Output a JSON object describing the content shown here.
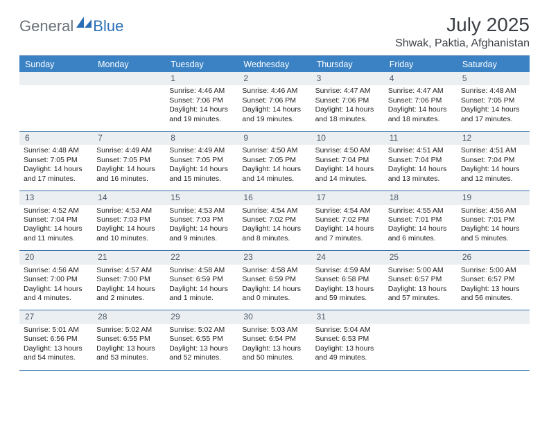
{
  "brand": {
    "general": "General",
    "blue": "Blue"
  },
  "title": "July 2025",
  "location": "Shwak, Paktia, Afghanistan",
  "accent_color": "#3a82c4",
  "rule_color": "#2f6aa6",
  "date_bar_color": "#eceff2",
  "day_names": [
    "Sunday",
    "Monday",
    "Tuesday",
    "Wednesday",
    "Thursday",
    "Friday",
    "Saturday"
  ],
  "weeks": [
    [
      null,
      null,
      {
        "d": "1",
        "sr": "Sunrise: 4:46 AM",
        "ss": "Sunset: 7:06 PM",
        "dl1": "Daylight: 14 hours",
        "dl2": "and 19 minutes."
      },
      {
        "d": "2",
        "sr": "Sunrise: 4:46 AM",
        "ss": "Sunset: 7:06 PM",
        "dl1": "Daylight: 14 hours",
        "dl2": "and 19 minutes."
      },
      {
        "d": "3",
        "sr": "Sunrise: 4:47 AM",
        "ss": "Sunset: 7:06 PM",
        "dl1": "Daylight: 14 hours",
        "dl2": "and 18 minutes."
      },
      {
        "d": "4",
        "sr": "Sunrise: 4:47 AM",
        "ss": "Sunset: 7:06 PM",
        "dl1": "Daylight: 14 hours",
        "dl2": "and 18 minutes."
      },
      {
        "d": "5",
        "sr": "Sunrise: 4:48 AM",
        "ss": "Sunset: 7:05 PM",
        "dl1": "Daylight: 14 hours",
        "dl2": "and 17 minutes."
      }
    ],
    [
      {
        "d": "6",
        "sr": "Sunrise: 4:48 AM",
        "ss": "Sunset: 7:05 PM",
        "dl1": "Daylight: 14 hours",
        "dl2": "and 17 minutes."
      },
      {
        "d": "7",
        "sr": "Sunrise: 4:49 AM",
        "ss": "Sunset: 7:05 PM",
        "dl1": "Daylight: 14 hours",
        "dl2": "and 16 minutes."
      },
      {
        "d": "8",
        "sr": "Sunrise: 4:49 AM",
        "ss": "Sunset: 7:05 PM",
        "dl1": "Daylight: 14 hours",
        "dl2": "and 15 minutes."
      },
      {
        "d": "9",
        "sr": "Sunrise: 4:50 AM",
        "ss": "Sunset: 7:05 PM",
        "dl1": "Daylight: 14 hours",
        "dl2": "and 14 minutes."
      },
      {
        "d": "10",
        "sr": "Sunrise: 4:50 AM",
        "ss": "Sunset: 7:04 PM",
        "dl1": "Daylight: 14 hours",
        "dl2": "and 14 minutes."
      },
      {
        "d": "11",
        "sr": "Sunrise: 4:51 AM",
        "ss": "Sunset: 7:04 PM",
        "dl1": "Daylight: 14 hours",
        "dl2": "and 13 minutes."
      },
      {
        "d": "12",
        "sr": "Sunrise: 4:51 AM",
        "ss": "Sunset: 7:04 PM",
        "dl1": "Daylight: 14 hours",
        "dl2": "and 12 minutes."
      }
    ],
    [
      {
        "d": "13",
        "sr": "Sunrise: 4:52 AM",
        "ss": "Sunset: 7:04 PM",
        "dl1": "Daylight: 14 hours",
        "dl2": "and 11 minutes."
      },
      {
        "d": "14",
        "sr": "Sunrise: 4:53 AM",
        "ss": "Sunset: 7:03 PM",
        "dl1": "Daylight: 14 hours",
        "dl2": "and 10 minutes."
      },
      {
        "d": "15",
        "sr": "Sunrise: 4:53 AM",
        "ss": "Sunset: 7:03 PM",
        "dl1": "Daylight: 14 hours",
        "dl2": "and 9 minutes."
      },
      {
        "d": "16",
        "sr": "Sunrise: 4:54 AM",
        "ss": "Sunset: 7:02 PM",
        "dl1": "Daylight: 14 hours",
        "dl2": "and 8 minutes."
      },
      {
        "d": "17",
        "sr": "Sunrise: 4:54 AM",
        "ss": "Sunset: 7:02 PM",
        "dl1": "Daylight: 14 hours",
        "dl2": "and 7 minutes."
      },
      {
        "d": "18",
        "sr": "Sunrise: 4:55 AM",
        "ss": "Sunset: 7:01 PM",
        "dl1": "Daylight: 14 hours",
        "dl2": "and 6 minutes."
      },
      {
        "d": "19",
        "sr": "Sunrise: 4:56 AM",
        "ss": "Sunset: 7:01 PM",
        "dl1": "Daylight: 14 hours",
        "dl2": "and 5 minutes."
      }
    ],
    [
      {
        "d": "20",
        "sr": "Sunrise: 4:56 AM",
        "ss": "Sunset: 7:00 PM",
        "dl1": "Daylight: 14 hours",
        "dl2": "and 4 minutes."
      },
      {
        "d": "21",
        "sr": "Sunrise: 4:57 AM",
        "ss": "Sunset: 7:00 PM",
        "dl1": "Daylight: 14 hours",
        "dl2": "and 2 minutes."
      },
      {
        "d": "22",
        "sr": "Sunrise: 4:58 AM",
        "ss": "Sunset: 6:59 PM",
        "dl1": "Daylight: 14 hours",
        "dl2": "and 1 minute."
      },
      {
        "d": "23",
        "sr": "Sunrise: 4:58 AM",
        "ss": "Sunset: 6:59 PM",
        "dl1": "Daylight: 14 hours",
        "dl2": "and 0 minutes."
      },
      {
        "d": "24",
        "sr": "Sunrise: 4:59 AM",
        "ss": "Sunset: 6:58 PM",
        "dl1": "Daylight: 13 hours",
        "dl2": "and 59 minutes."
      },
      {
        "d": "25",
        "sr": "Sunrise: 5:00 AM",
        "ss": "Sunset: 6:57 PM",
        "dl1": "Daylight: 13 hours",
        "dl2": "and 57 minutes."
      },
      {
        "d": "26",
        "sr": "Sunrise: 5:00 AM",
        "ss": "Sunset: 6:57 PM",
        "dl1": "Daylight: 13 hours",
        "dl2": "and 56 minutes."
      }
    ],
    [
      {
        "d": "27",
        "sr": "Sunrise: 5:01 AM",
        "ss": "Sunset: 6:56 PM",
        "dl1": "Daylight: 13 hours",
        "dl2": "and 54 minutes."
      },
      {
        "d": "28",
        "sr": "Sunrise: 5:02 AM",
        "ss": "Sunset: 6:55 PM",
        "dl1": "Daylight: 13 hours",
        "dl2": "and 53 minutes."
      },
      {
        "d": "29",
        "sr": "Sunrise: 5:02 AM",
        "ss": "Sunset: 6:55 PM",
        "dl1": "Daylight: 13 hours",
        "dl2": "and 52 minutes."
      },
      {
        "d": "30",
        "sr": "Sunrise: 5:03 AM",
        "ss": "Sunset: 6:54 PM",
        "dl1": "Daylight: 13 hours",
        "dl2": "and 50 minutes."
      },
      {
        "d": "31",
        "sr": "Sunrise: 5:04 AM",
        "ss": "Sunset: 6:53 PM",
        "dl1": "Daylight: 13 hours",
        "dl2": "and 49 minutes."
      },
      null,
      null
    ]
  ]
}
